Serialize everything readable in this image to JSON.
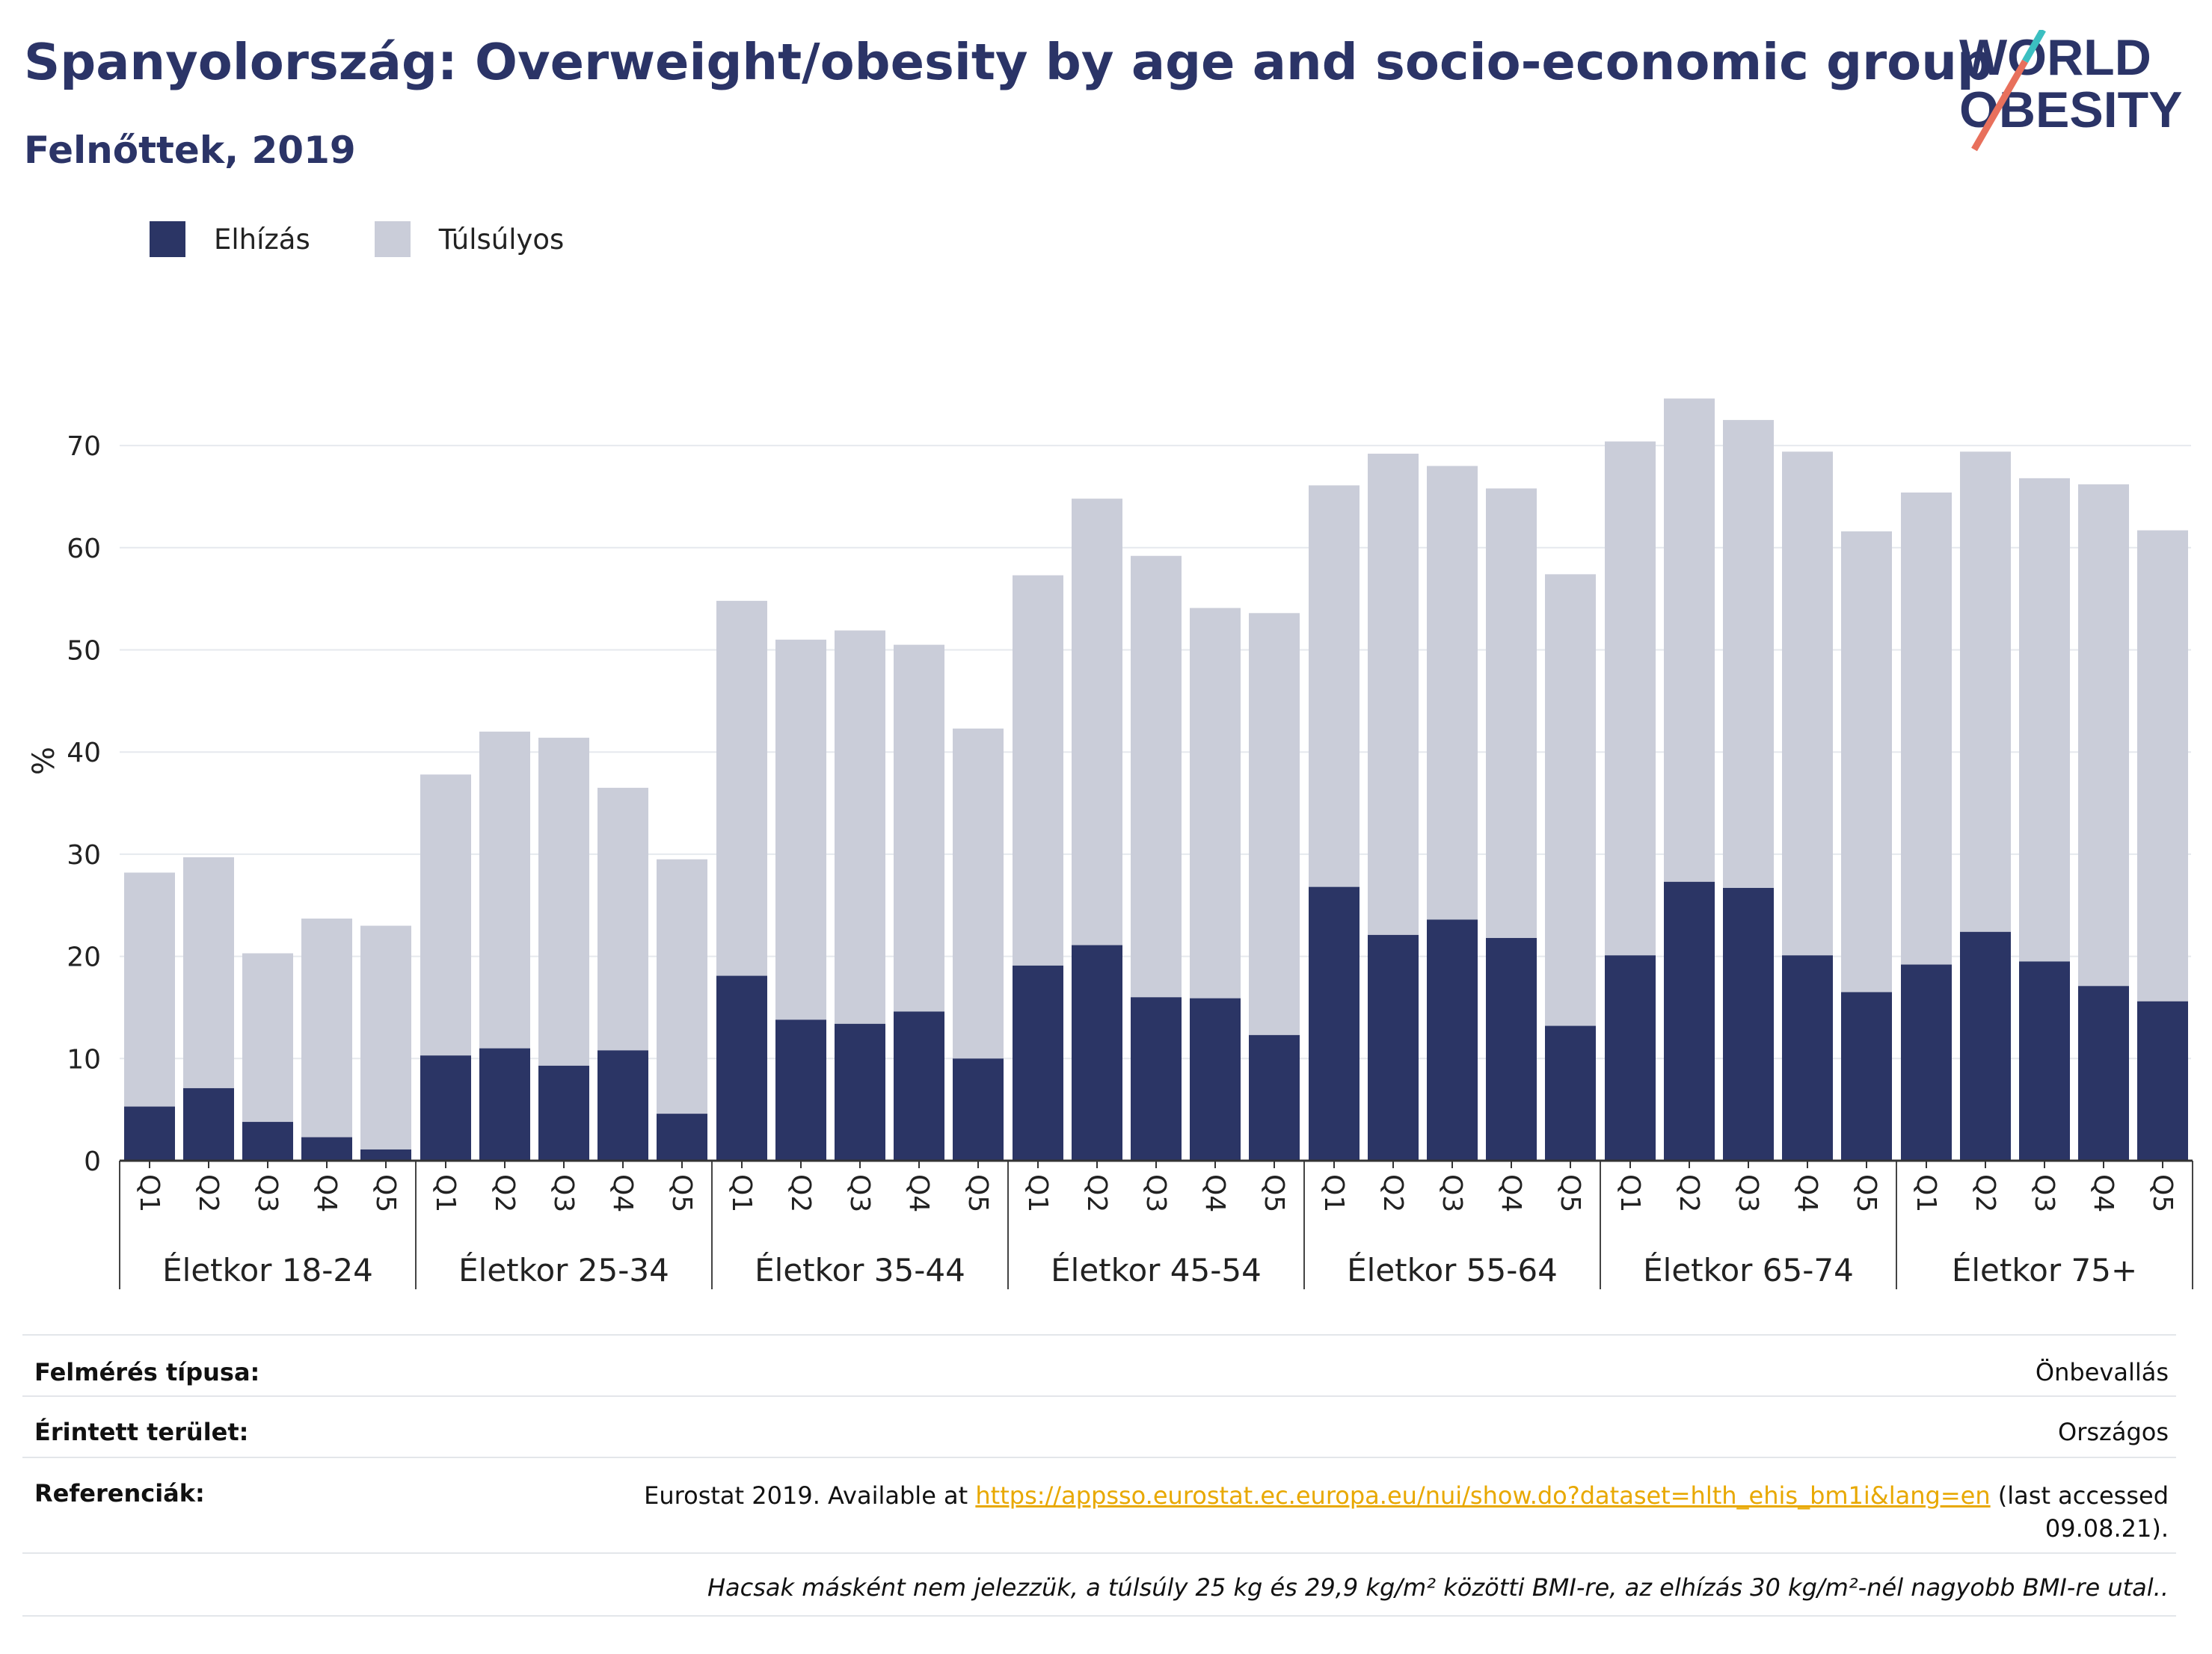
{
  "header": {
    "title": "Spanyolország: Overweight/obesity by age and socio-economic group",
    "subtitle": "Felnőttek, 2019"
  },
  "logo": {
    "line1": "WORLD",
    "line2": "OBESITY"
  },
  "colors": {
    "obesity": "#2b3565",
    "overweight": "#cacdd9",
    "title": "#2b3467",
    "link": "#e8a800",
    "logo_teal": "#3bbfc1",
    "logo_coral": "#e8705c"
  },
  "legend": {
    "items": [
      "Elhízás",
      "Túlsúlyos"
    ]
  },
  "chart_data": {
    "type": "bar",
    "stacked": true,
    "ylabel": "%",
    "ylim": [
      0,
      75
    ],
    "yticks": [
      0,
      10,
      20,
      30,
      40,
      50,
      60,
      70
    ],
    "grid": true,
    "legend_position": "top-left",
    "groups": [
      "Életkor 18-24",
      "Életkor 25-34",
      "Életkor 35-44",
      "Életkor 45-54",
      "Életkor 55-64",
      "Életkor 65-74",
      "Életkor 75+"
    ],
    "categories": [
      "Q1",
      "Q2",
      "Q3",
      "Q4",
      "Q5"
    ],
    "series": [
      {
        "name": "Elhízás",
        "values": [
          [
            5.3,
            7.1,
            3.8,
            2.3,
            1.1
          ],
          [
            10.3,
            11.0,
            9.3,
            10.8,
            4.6
          ],
          [
            18.1,
            13.8,
            13.4,
            14.6,
            10.0
          ],
          [
            19.1,
            21.1,
            16.0,
            15.9,
            12.3
          ],
          [
            26.8,
            22.1,
            23.6,
            21.8,
            13.2
          ],
          [
            20.1,
            27.3,
            26.7,
            20.1,
            16.5
          ],
          [
            19.2,
            22.4,
            19.5,
            17.1,
            15.6
          ]
        ]
      },
      {
        "name": "Túlsúlyos",
        "values": [
          [
            22.9,
            22.6,
            16.5,
            21.4,
            21.9
          ],
          [
            27.5,
            31.0,
            32.1,
            25.7,
            24.9
          ],
          [
            36.7,
            37.2,
            38.5,
            35.9,
            32.3
          ],
          [
            38.2,
            43.7,
            43.2,
            38.2,
            41.3
          ],
          [
            39.3,
            47.1,
            44.4,
            44.0,
            44.2
          ],
          [
            50.3,
            47.3,
            45.8,
            49.3,
            45.1
          ],
          [
            46.2,
            47.0,
            47.3,
            49.1,
            46.1
          ]
        ]
      }
    ]
  },
  "info": {
    "rows": [
      {
        "key": "Felmérés típusa:",
        "value": "Önbevallás"
      },
      {
        "key": "Érintett terület:",
        "value": "Országos"
      },
      {
        "key": "Referenciák:",
        "value_prefix": "Eurostat 2019. Available at ",
        "link": "https://appsso.eurostat.ec.europa.eu/nui/show.do?dataset=hlth_ehis_bm1i&lang=en",
        "value_suffix": " (last accessed",
        "value_line2": "09.08.21)."
      }
    ],
    "note": "Hacsak másként nem jelezzük, a túlsúly 25 kg és 29,9 kg/m² közötti BMI-re, az elhízás 30 kg/m²-nél nagyobb BMI-re utal.."
  }
}
